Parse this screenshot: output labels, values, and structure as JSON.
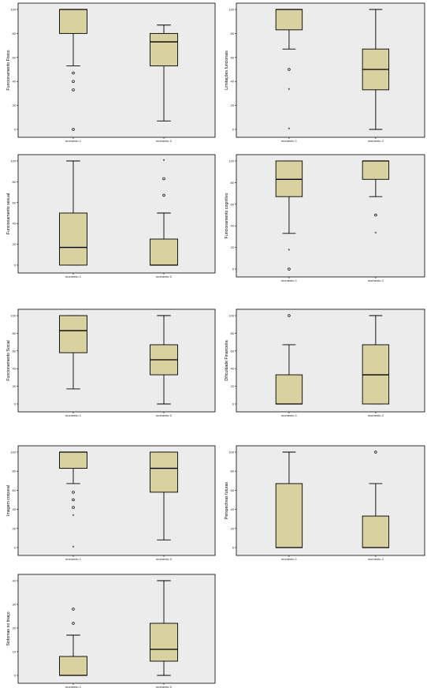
{
  "colors": {
    "plot_bg": "#ececec",
    "box_fill": "#d9d1a0",
    "stroke": "#000000"
  },
  "chart_data": [
    {
      "type": "boxplot",
      "ylabel": "Funcionamento Físico",
      "categories": [
        "momento 1",
        "momento 2"
      ],
      "ylim": [
        0,
        100
      ],
      "yticks": [
        "0",
        "20",
        "40",
        "60",
        "80",
        "100"
      ],
      "boxes": [
        {
          "min": 53,
          "q1": 80,
          "median": 100,
          "q3": 100,
          "max": 100,
          "outliers": [
            {
              "v": 47,
              "m": "o"
            },
            {
              "v": 40,
              "m": "o"
            },
            {
              "v": 33,
              "m": "o"
            },
            {
              "v": 0,
              "m": "o"
            }
          ]
        },
        {
          "min": 7,
          "q1": 53,
          "median": 73,
          "q3": 80,
          "max": 87,
          "outliers": []
        }
      ]
    },
    {
      "type": "boxplot",
      "ylabel": "Limitações funcionais",
      "categories": [
        "momento 1",
        "momento 2"
      ],
      "ylim": [
        0,
        100
      ],
      "yticks": [
        "0",
        "20",
        "40",
        "60",
        "80",
        "100"
      ],
      "boxes": [
        {
          "min": 67,
          "q1": 83,
          "median": 100,
          "q3": 100,
          "max": 100,
          "outliers": [
            {
              "v": 50,
              "m": "o"
            },
            {
              "v": 33,
              "m": "*"
            },
            {
              "v": 0,
              "m": "*"
            }
          ]
        },
        {
          "min": 0,
          "q1": 33,
          "median": 50,
          "q3": 67,
          "max": 100,
          "outliers": []
        }
      ]
    },
    {
      "type": "boxplot",
      "ylabel": "Funcionamento sexual",
      "categories": [
        "momento 1",
        "momento 2"
      ],
      "ylim": [
        0,
        100
      ],
      "yticks": [
        "0",
        "20",
        "40",
        "60",
        "80",
        "100"
      ],
      "boxes": [
        {
          "min": 0,
          "q1": 0,
          "median": 17,
          "q3": 50,
          "max": 100,
          "outliers": []
        },
        {
          "min": 0,
          "q1": 0,
          "median": 0,
          "q3": 25,
          "max": 50,
          "outliers": [
            {
              "v": 67,
              "m": "o"
            },
            {
              "v": 83,
              "m": "o"
            },
            {
              "v": 100,
              "m": "*"
            }
          ]
        }
      ]
    },
    {
      "type": "boxplot",
      "ylabel": "Funcionamento cognitivo",
      "categories": [
        "momento 1",
        "momento 2"
      ],
      "ylim": [
        0,
        100
      ],
      "yticks": [
        "0",
        "20",
        "40",
        "60",
        "80",
        "100"
      ],
      "boxes": [
        {
          "min": 33,
          "q1": 67,
          "median": 83,
          "q3": 100,
          "max": 100,
          "outliers": [
            {
              "v": 17,
              "m": "*"
            },
            {
              "v": 0,
              "m": "o"
            }
          ]
        },
        {
          "min": 67,
          "q1": 83,
          "median": 100,
          "q3": 100,
          "max": 100,
          "outliers": [
            {
              "v": 50,
              "m": "o"
            },
            {
              "v": 33,
              "m": "*"
            }
          ]
        }
      ]
    },
    {
      "type": "boxplot",
      "ylabel": "Funcionamento Social",
      "categories": [
        "momento 1",
        "momento 2"
      ],
      "ylim": [
        0,
        100
      ],
      "yticks": [
        "0",
        "20",
        "40",
        "60",
        "80",
        "100"
      ],
      "boxes": [
        {
          "min": 17,
          "q1": 58,
          "median": 83,
          "q3": 100,
          "max": 100,
          "outliers": []
        },
        {
          "min": 0,
          "q1": 33,
          "median": 50,
          "q3": 67,
          "max": 100,
          "outliers": []
        }
      ]
    },
    {
      "type": "boxplot",
      "ylabel": "Dificuldade Financeira",
      "categories": [
        "momento 1",
        "momento 2"
      ],
      "ylim": [
        0,
        100
      ],
      "yticks": [
        "0",
        "20",
        "40",
        "60",
        "80",
        "100"
      ],
      "boxes": [
        {
          "min": 0,
          "q1": 0,
          "median": 0,
          "q3": 33,
          "max": 67,
          "outliers": [
            {
              "v": 100,
              "m": "o"
            }
          ]
        },
        {
          "min": 0,
          "q1": 0,
          "median": 33,
          "q3": 67,
          "max": 100,
          "outliers": []
        }
      ]
    },
    {
      "type": "boxplot",
      "ylabel": "Imagem corporal",
      "categories": [
        "momento 1",
        "momento 2"
      ],
      "ylim": [
        0,
        100
      ],
      "yticks": [
        "0",
        "20",
        "40",
        "60",
        "80",
        "100"
      ],
      "boxes": [
        {
          "min": 67,
          "q1": 83,
          "median": 100,
          "q3": 100,
          "max": 100,
          "outliers": [
            {
              "v": 58,
              "m": "o"
            },
            {
              "v": 50,
              "m": "o"
            },
            {
              "v": 42,
              "m": "o"
            },
            {
              "v": 33,
              "m": "*"
            },
            {
              "v": 0,
              "m": "*"
            }
          ]
        },
        {
          "min": 8,
          "q1": 58,
          "median": 83,
          "q3": 100,
          "max": 100,
          "outliers": []
        }
      ]
    },
    {
      "type": "boxplot",
      "ylabel": "Perspectivas futuras",
      "categories": [
        "momento 1",
        "momento 2"
      ],
      "ylim": [
        0,
        100
      ],
      "yticks": [
        "0",
        "20",
        "40",
        "60",
        "80",
        "100"
      ],
      "boxes": [
        {
          "min": 0,
          "q1": 0,
          "median": 0,
          "q3": 67,
          "max": 100,
          "outliers": []
        },
        {
          "min": 0,
          "q1": 0,
          "median": 0,
          "q3": 33,
          "max": 67,
          "outliers": [
            {
              "v": 100,
              "m": "o"
            }
          ]
        }
      ]
    },
    {
      "type": "boxplot",
      "ylabel": "Sintomas no braço",
      "categories": [
        "momento 1",
        "momento 2"
      ],
      "ylim": [
        0,
        40
      ],
      "yticks": [
        "0",
        "10",
        "20",
        "30",
        "40"
      ],
      "boxes": [
        {
          "min": 0,
          "q1": 0,
          "median": 0,
          "q3": 8,
          "max": 17,
          "outliers": [
            {
              "v": 22,
              "m": "o"
            },
            {
              "v": 28,
              "m": "o"
            }
          ]
        },
        {
          "min": 0,
          "q1": 6,
          "median": 11,
          "q3": 22,
          "max": 40,
          "outliers": []
        }
      ]
    }
  ]
}
